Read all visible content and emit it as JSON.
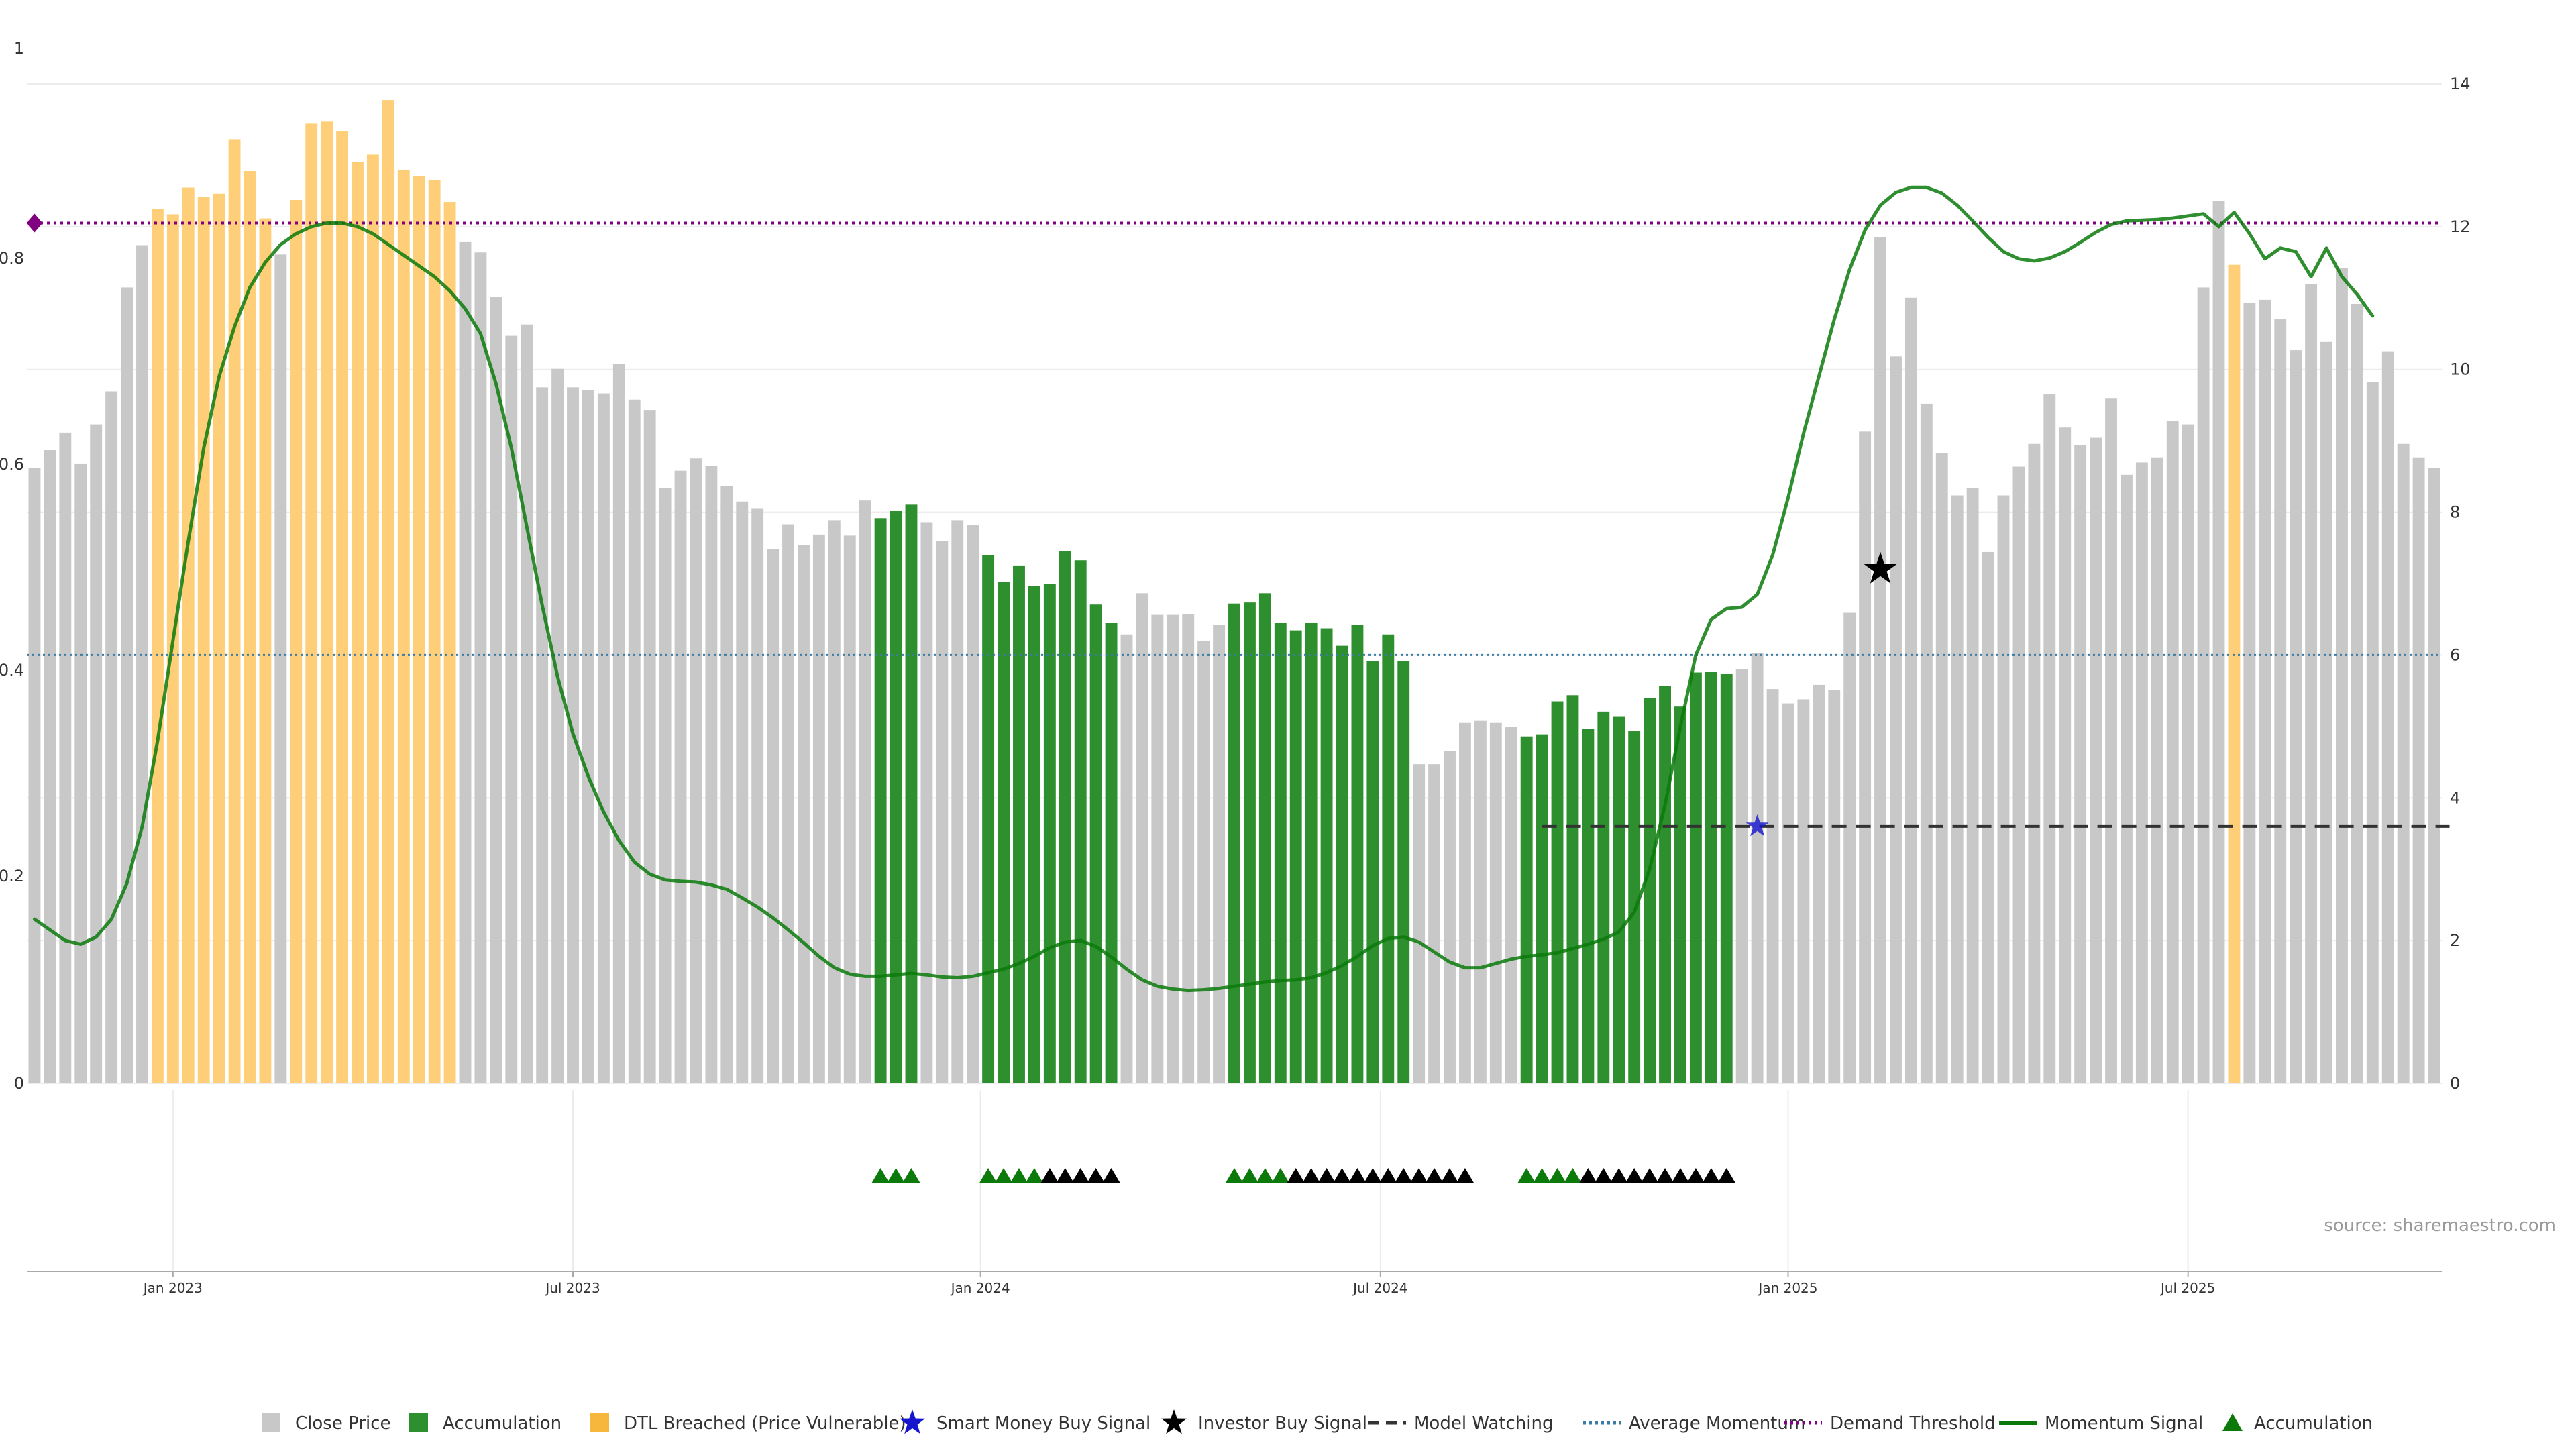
{
  "chart_data": {
    "type": "bar",
    "title": "",
    "xlabel": "",
    "ylabel": "",
    "source": "source: sharemaestro.com",
    "left_axis": {
      "ylim": [
        0,
        1
      ],
      "ticks": [
        "0",
        "0.2",
        "0.4",
        "0.6",
        "0.8",
        "1"
      ]
    },
    "right_axis": {
      "ylim": [
        0,
        14
      ],
      "ticks": [
        "0",
        "2",
        "4",
        "6",
        "8",
        "10",
        "12",
        "14"
      ]
    },
    "x_ticks": [
      {
        "label": "Jan 2023",
        "week": 9
      },
      {
        "label": "Jul 2023",
        "week": 35
      },
      {
        "label": "Jan 2024",
        "week": 61.5
      },
      {
        "label": "Jul 2024",
        "week": 87.5
      },
      {
        "label": "Jan 2025",
        "week": 114
      },
      {
        "label": "Jul 2025",
        "week": 140
      }
    ],
    "grid": true,
    "legend_position": "bottom",
    "colors": {
      "close": "#c8c8c8",
      "accumulation": "#2d8f2d",
      "dtl": "#fecf78",
      "smart_money": "#1515d0",
      "investor": "#000000",
      "model_watching": "#333333",
      "average_momentum": "#3a7ca5",
      "demand_threshold": "#800080",
      "momentum": "#0b7a0b",
      "acc_marker": "#0b7a0b"
    },
    "bar_values": [
      0.598,
      0.615,
      0.632,
      0.602,
      0.64,
      0.672,
      0.773,
      0.814,
      0.849,
      0.844,
      0.87,
      0.861,
      0.864,
      0.917,
      0.886,
      0.84,
      0.805,
      0.858,
      0.932,
      0.934,
      0.925,
      0.895,
      0.902,
      0.955,
      0.887,
      0.881,
      0.877,
      0.856,
      0.817,
      0.807,
      0.764,
      0.726,
      0.737,
      0.676,
      0.694,
      0.676,
      0.673,
      0.67,
      0.699,
      0.664,
      0.654,
      0.578,
      0.595,
      0.607,
      0.6,
      0.58,
      0.565,
      0.558,
      0.519,
      0.543,
      0.523,
      0.533,
      0.547,
      0.532,
      0.566,
      0.549,
      0.556,
      0.562,
      0.545,
      0.527,
      0.547,
      0.542,
      0.513,
      0.487,
      0.503,
      0.483,
      0.485,
      0.517,
      0.508,
      0.465,
      0.447,
      0.436,
      0.476,
      0.455,
      0.455,
      0.456,
      0.43,
      0.445,
      0.466,
      0.467,
      0.476,
      0.447,
      0.44,
      0.447,
      0.442,
      0.425,
      0.445,
      0.41,
      0.436,
      0.41,
      0.31,
      0.31,
      0.323,
      0.35,
      0.352,
      0.35,
      0.346,
      0.337,
      0.339,
      0.371,
      0.377,
      0.344,
      0.361,
      0.356,
      0.342,
      0.374,
      0.386,
      0.366,
      0.399,
      0.4,
      0.398,
      0.402,
      0.418,
      0.383,
      0.369,
      0.373,
      0.387,
      0.382,
      0.457,
      0.633,
      0.822,
      0.706,
      0.763,
      0.66,
      0.612,
      0.571,
      0.578,
      0.516,
      0.571,
      0.599,
      0.621,
      0.669,
      0.637,
      0.62,
      0.627,
      0.665,
      0.591,
      0.603,
      0.608,
      0.643,
      0.64,
      0.773,
      0.857,
      0.795,
      0.758,
      0.761,
      0.742,
      0.712,
      0.776,
      0.72,
      0.792,
      0.757,
      0.681,
      0.711,
      0.621,
      0.608,
      0.598
    ],
    "categories": {
      "accumulation": [
        [
          55,
          57
        ],
        [
          62,
          70
        ],
        [
          78,
          89
        ],
        [
          97,
          110
        ]
      ],
      "dtl": [
        [
          8,
          15
        ],
        [
          17,
          27
        ],
        [
          143,
          143
        ]
      ]
    },
    "momentum_signal": [
      [
        0,
        2.3
      ],
      [
        1,
        2.15
      ],
      [
        2,
        2
      ],
      [
        3,
        1.95
      ],
      [
        4,
        2.05
      ],
      [
        5,
        2.3
      ],
      [
        6,
        2.8
      ],
      [
        7,
        3.6
      ],
      [
        8,
        4.8
      ],
      [
        9,
        6.2
      ],
      [
        10,
        7.6
      ],
      [
        11,
        8.9
      ],
      [
        12,
        9.9
      ],
      [
        13,
        10.6
      ],
      [
        14,
        11.15
      ],
      [
        15,
        11.5
      ],
      [
        16,
        11.75
      ],
      [
        17,
        11.9
      ],
      [
        18,
        12
      ],
      [
        19,
        12.05
      ],
      [
        20,
        12.05
      ],
      [
        21,
        12
      ],
      [
        22,
        11.9
      ],
      [
        23,
        11.75
      ],
      [
        24,
        11.6
      ],
      [
        25,
        11.45
      ],
      [
        26,
        11.3
      ],
      [
        27,
        11.1
      ],
      [
        28,
        10.85
      ],
      [
        29,
        10.5
      ],
      [
        30,
        9.8
      ],
      [
        31,
        8.9
      ],
      [
        32,
        7.8
      ],
      [
        33,
        6.7
      ],
      [
        34,
        5.7
      ],
      [
        35,
        4.9
      ],
      [
        36,
        4.3
      ],
      [
        37,
        3.8
      ],
      [
        38,
        3.4
      ],
      [
        39,
        3.1
      ],
      [
        40,
        2.93
      ],
      [
        41,
        2.85
      ],
      [
        42,
        2.83
      ],
      [
        43,
        2.82
      ],
      [
        44,
        2.78
      ],
      [
        45,
        2.72
      ],
      [
        46,
        2.6
      ],
      [
        47,
        2.47
      ],
      [
        48,
        2.32
      ],
      [
        49,
        2.15
      ],
      [
        50,
        1.97
      ],
      [
        51,
        1.78
      ],
      [
        52,
        1.62
      ],
      [
        53,
        1.53
      ],
      [
        54,
        1.5
      ],
      [
        55,
        1.5
      ],
      [
        56,
        1.52
      ],
      [
        57,
        1.54
      ],
      [
        58,
        1.52
      ],
      [
        59,
        1.49
      ],
      [
        60,
        1.48
      ],
      [
        61,
        1.5
      ],
      [
        62,
        1.55
      ],
      [
        63,
        1.6
      ],
      [
        64,
        1.68
      ],
      [
        65,
        1.78
      ],
      [
        66,
        1.9
      ],
      [
        67,
        1.98
      ],
      [
        68,
        2
      ],
      [
        69,
        1.92
      ],
      [
        70,
        1.77
      ],
      [
        71,
        1.6
      ],
      [
        72,
        1.45
      ],
      [
        73,
        1.36
      ],
      [
        74,
        1.32
      ],
      [
        75,
        1.3
      ],
      [
        76,
        1.31
      ],
      [
        77,
        1.33
      ],
      [
        78,
        1.36
      ],
      [
        79,
        1.39
      ],
      [
        80,
        1.42
      ],
      [
        81,
        1.44
      ],
      [
        82,
        1.45
      ],
      [
        83,
        1.48
      ],
      [
        84,
        1.55
      ],
      [
        85,
        1.65
      ],
      [
        86,
        1.78
      ],
      [
        87,
        1.93
      ],
      [
        88,
        2.03
      ],
      [
        89,
        2.05
      ],
      [
        90,
        1.98
      ],
      [
        91,
        1.84
      ],
      [
        92,
        1.7
      ],
      [
        93,
        1.62
      ],
      [
        94,
        1.62
      ],
      [
        95,
        1.68
      ],
      [
        96,
        1.74
      ],
      [
        97,
        1.78
      ],
      [
        98,
        1.8
      ],
      [
        99,
        1.83
      ],
      [
        100,
        1.89
      ],
      [
        101,
        1.95
      ],
      [
        102,
        2.02
      ],
      [
        103,
        2.12
      ],
      [
        104,
        2.4
      ],
      [
        105,
        3
      ],
      [
        106,
        3.9
      ],
      [
        107,
        5
      ],
      [
        108,
        6
      ],
      [
        109,
        6.5
      ],
      [
        110,
        6.65
      ],
      [
        111,
        6.67
      ],
      [
        112,
        6.85
      ],
      [
        113,
        7.4
      ],
      [
        114,
        8.2
      ],
      [
        115,
        9.1
      ],
      [
        116,
        9.9
      ],
      [
        117,
        10.7
      ],
      [
        118,
        11.4
      ],
      [
        119,
        11.95
      ],
      [
        120,
        12.3
      ],
      [
        121,
        12.48
      ],
      [
        122,
        12.55
      ],
      [
        123,
        12.55
      ],
      [
        124,
        12.47
      ],
      [
        125,
        12.3
      ],
      [
        126,
        12.08
      ],
      [
        127,
        11.85
      ],
      [
        128,
        11.65
      ],
      [
        129,
        11.55
      ],
      [
        130,
        11.52
      ],
      [
        131,
        11.56
      ],
      [
        132,
        11.65
      ],
      [
        133,
        11.78
      ],
      [
        134,
        11.92
      ],
      [
        135,
        12.03
      ],
      [
        136,
        12.08
      ],
      [
        137,
        12.09
      ],
      [
        138,
        12.1
      ],
      [
        139,
        12.12
      ],
      [
        140,
        12.15
      ],
      [
        141,
        12.18
      ],
      [
        142,
        12
      ],
      [
        143,
        12.2
      ],
      [
        144,
        11.9
      ],
      [
        145,
        11.55
      ],
      [
        146,
        11.7
      ],
      [
        147,
        11.65
      ],
      [
        148,
        11.3
      ],
      [
        149,
        11.7
      ],
      [
        150,
        11.3
      ],
      [
        151,
        11.05
      ],
      [
        152,
        10.75
      ]
    ],
    "average_momentum": 6,
    "demand_threshold": 12.05,
    "model_watching": {
      "value": 3.6,
      "start": 98,
      "end": 157
    },
    "investor_buy_signal": {
      "week": 120,
      "value": 7.2
    },
    "smart_money_buy_signal": {
      "week": 112,
      "value": 3.6
    },
    "demand_marker_week": 0,
    "accumulation_markers": {
      "green_weeks": [
        55,
        56,
        57,
        62,
        63,
        64,
        65,
        78,
        79,
        80,
        81,
        97,
        98,
        99,
        100
      ],
      "black_weeks": [
        66,
        67,
        68,
        69,
        70,
        82,
        83,
        84,
        85,
        86,
        87,
        88,
        89,
        90,
        91,
        92,
        93,
        101,
        102,
        103,
        104,
        105,
        106,
        107,
        108,
        109,
        110
      ]
    },
    "legend": [
      {
        "label": "Close Price",
        "symbol": "square",
        "color": "#c8c8c8"
      },
      {
        "label": "Accumulation",
        "symbol": "square",
        "color": "#2d8f2d"
      },
      {
        "label": "DTL Breached (Price Vulnerable)",
        "symbol": "square",
        "color": "#f6b73c"
      },
      {
        "label": "Smart Money Buy Signal",
        "symbol": "star",
        "color": "#1515d0"
      },
      {
        "label": "Investor Buy Signal",
        "symbol": "star",
        "color": "#000000"
      },
      {
        "label": "Model Watching",
        "symbol": "dash",
        "color": "#333333"
      },
      {
        "label": "Average Momentum",
        "symbol": "dot",
        "color": "#3a7ca5"
      },
      {
        "label": "Demand Threshold",
        "symbol": "dot",
        "color": "#800080"
      },
      {
        "label": "Momentum Signal",
        "symbol": "line",
        "color": "#0b7a0b"
      },
      {
        "label": "Accumulation",
        "symbol": "triangle",
        "color": "#0b7a0b"
      }
    ]
  }
}
